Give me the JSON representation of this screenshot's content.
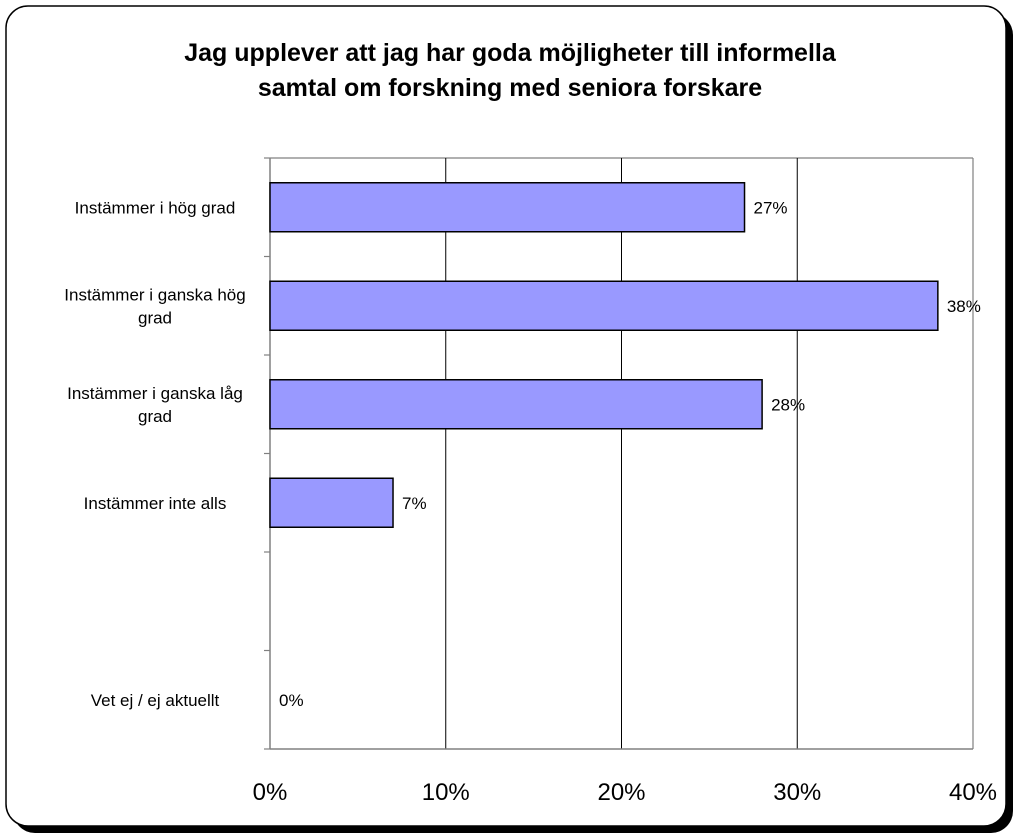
{
  "chart_data": {
    "type": "bar",
    "orientation": "horizontal",
    "title": {
      "line1": "Jag upplever att jag har goda möjligheter till informella",
      "line2": "samtal om forskning med seniora forskare"
    },
    "categories": [
      [
        "Instämmer i hög grad"
      ],
      [
        "Instämmer i ganska hög",
        "grad"
      ],
      [
        "Instämmer i ganska låg",
        "grad"
      ],
      [
        "Instämmer inte alls"
      ],
      [
        ""
      ],
      [
        "Vet ej / ej aktuellt"
      ]
    ],
    "values": [
      27,
      38,
      28,
      7,
      null,
      0
    ],
    "data_labels": [
      "27%",
      "38%",
      "28%",
      "7%",
      "",
      "0%"
    ],
    "x_ticks": [
      "0%",
      "10%",
      "20%",
      "30%",
      "40%"
    ],
    "xlim": [
      0,
      40
    ],
    "grid": "vertical",
    "legend": "none",
    "bar_color": "#9999ff",
    "bar_stroke": "#000000",
    "grid_color": "#000000",
    "axis_color": "#808080"
  }
}
